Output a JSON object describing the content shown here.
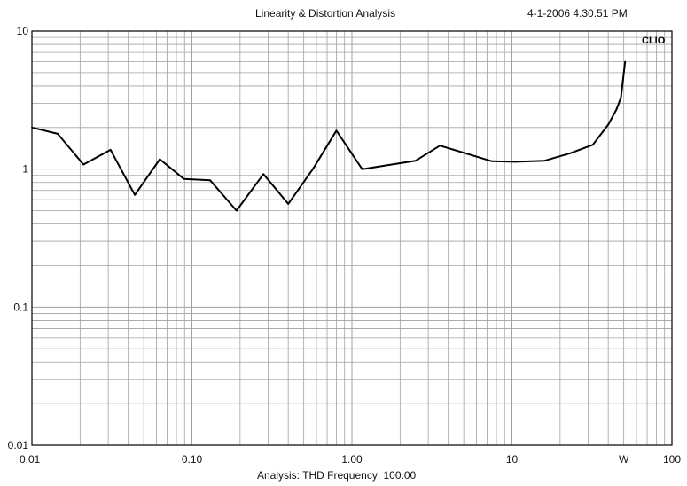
{
  "header": {
    "title": "Linearity & Distortion Analysis",
    "timestamp": "4-1-2006 4.30.51 PM"
  },
  "brand": "CLIO",
  "footer": "Analysis: THD   Frequency: 100.00",
  "colors": {
    "grid": "#a0a0a0",
    "line": "#000000",
    "background": "#ffffff"
  },
  "chart_data": {
    "type": "line",
    "title": "Linearity & Distortion Analysis",
    "xlabel": "Analysis: THD   Frequency: 100.00",
    "ylabel": "",
    "xscale": "log",
    "yscale": "log",
    "xlim": [
      0.01,
      100
    ],
    "ylim": [
      0.01,
      10
    ],
    "grid": true,
    "x_ticks": [
      {
        "value": 0.01,
        "label": "0.01"
      },
      {
        "value": 0.1,
        "label": "0.10"
      },
      {
        "value": 1,
        "label": "1.00"
      },
      {
        "value": 10,
        "label": "10"
      },
      {
        "value": 50,
        "label": "W"
      },
      {
        "value": 100,
        "label": "100"
      }
    ],
    "y_ticks": [
      {
        "value": 10,
        "label": "10"
      },
      {
        "value": 1,
        "label": "1"
      },
      {
        "value": 0.1,
        "label": "0.1"
      },
      {
        "value": 0.01,
        "label": "0.01"
      }
    ],
    "series": [
      {
        "x": [
          0.01,
          0.0145,
          0.021,
          0.031,
          0.044,
          0.063,
          0.089,
          0.13,
          0.19,
          0.28,
          0.4,
          0.57,
          0.8,
          1.16,
          2.5,
          3.55,
          7.5,
          10.5,
          16,
          23,
          32,
          40,
          45,
          48,
          49.5,
          51
        ],
        "y": [
          2.0,
          1.8,
          1.08,
          1.38,
          0.65,
          1.18,
          0.85,
          0.83,
          0.5,
          0.92,
          0.56,
          1.0,
          1.9,
          1.0,
          1.15,
          1.48,
          1.14,
          1.13,
          1.15,
          1.3,
          1.5,
          2.1,
          2.7,
          3.3,
          4.5,
          6.0
        ]
      }
    ]
  }
}
